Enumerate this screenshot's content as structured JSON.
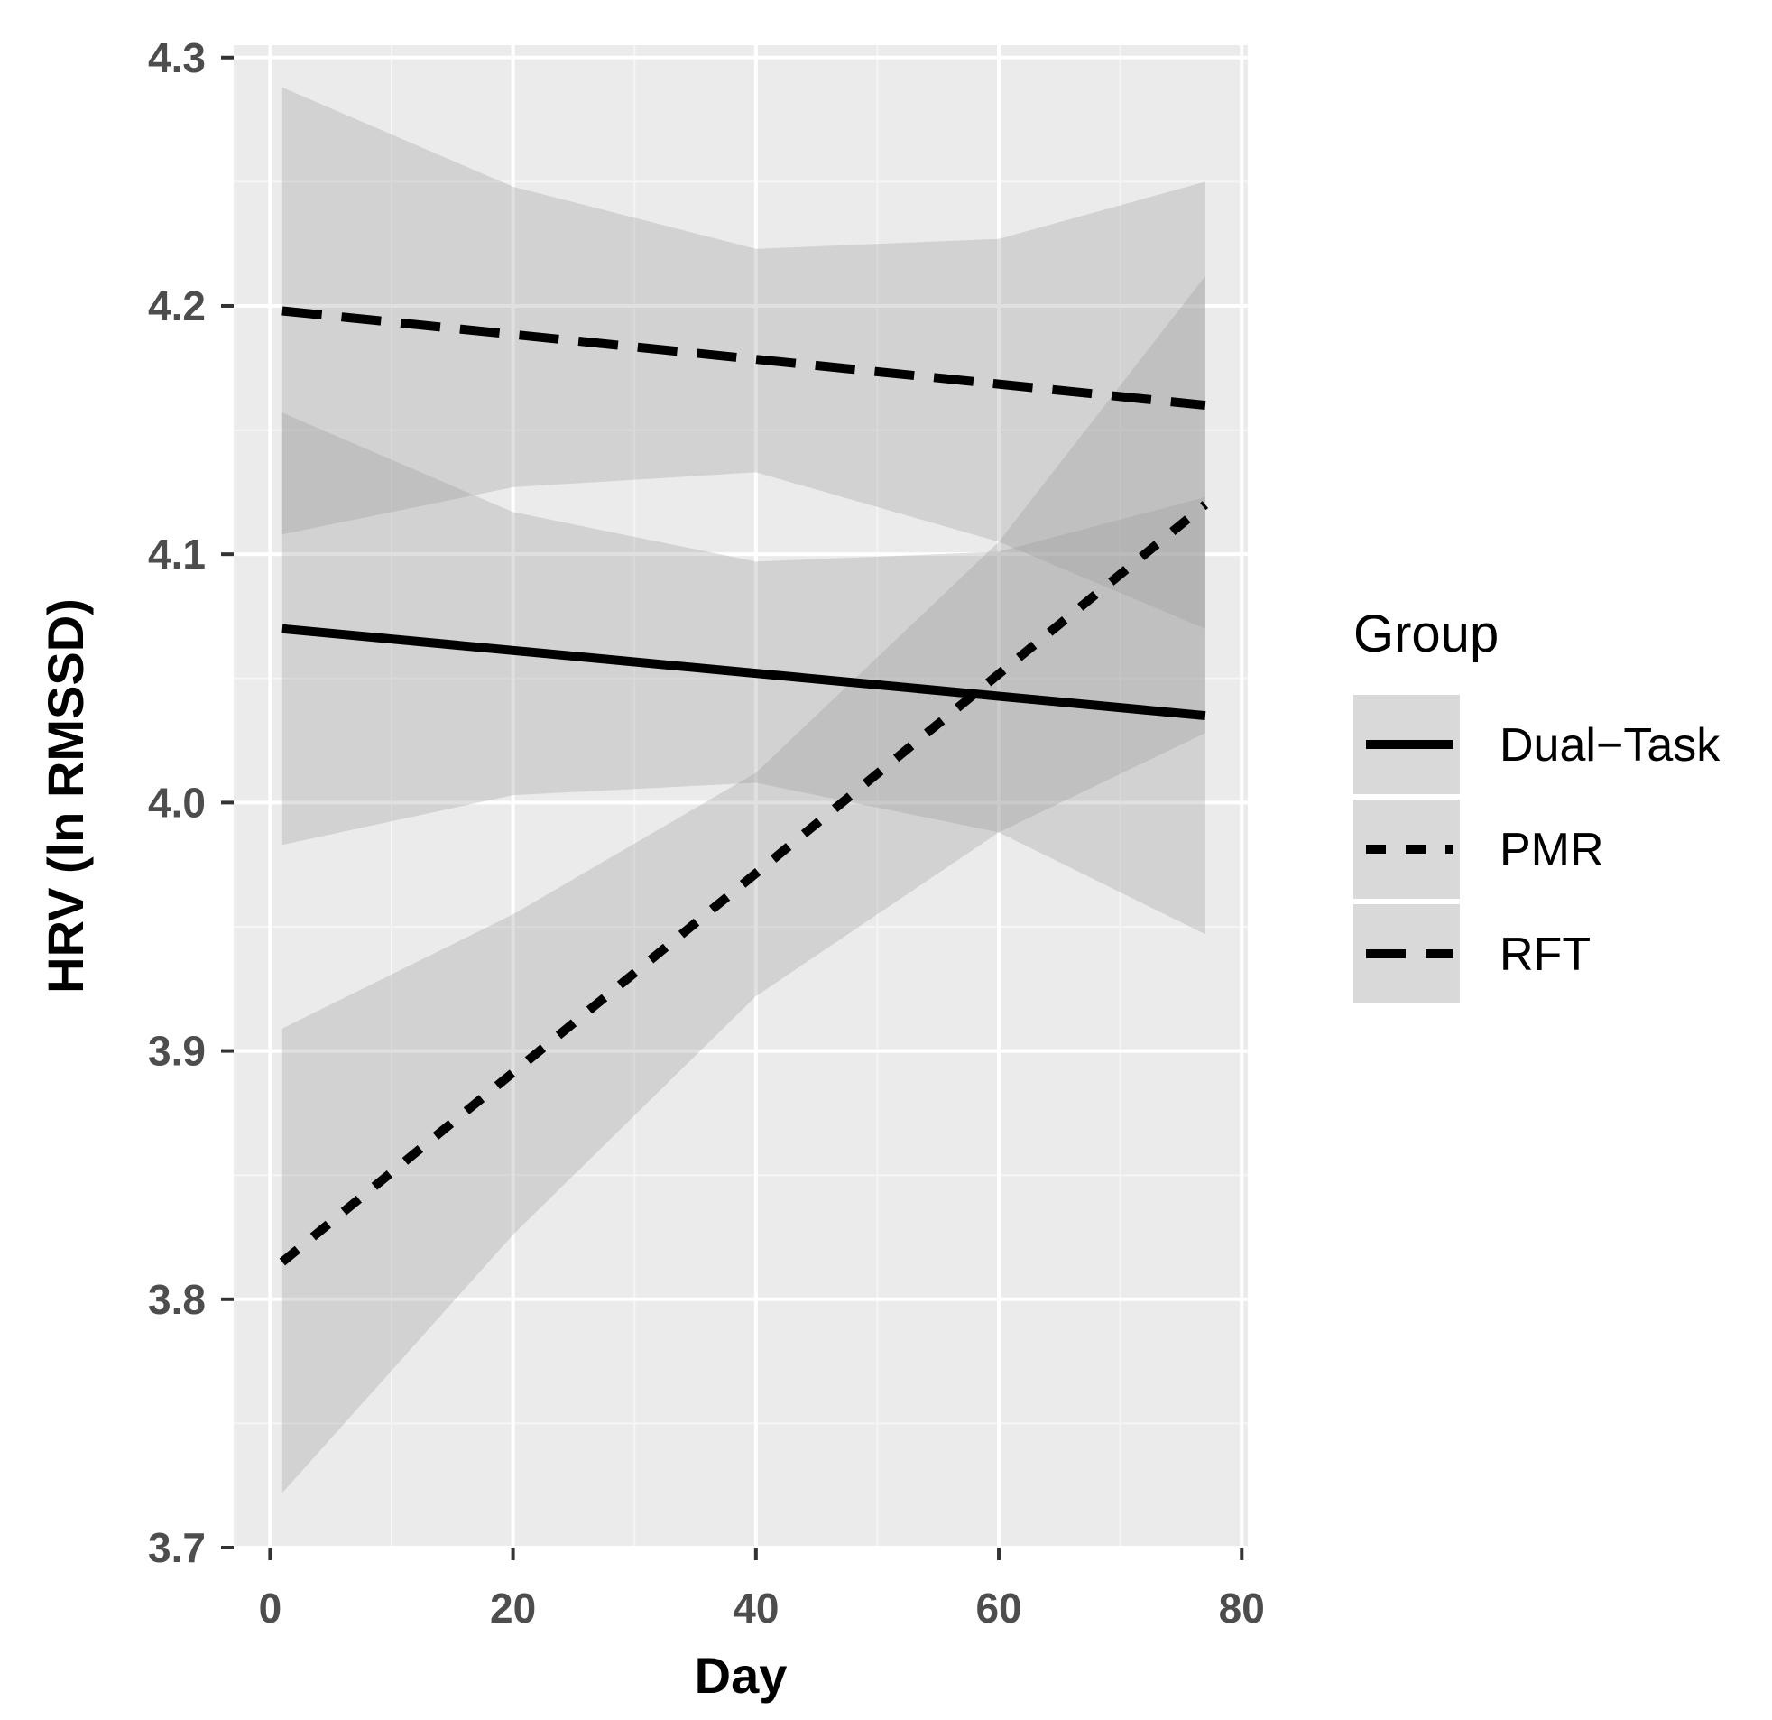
{
  "chart_data": {
    "type": "line",
    "title": "",
    "xlabel": "Day",
    "ylabel": "HRV (ln RMSSD)",
    "xlim": [
      -3,
      80.5
    ],
    "ylim": [
      3.7,
      4.305
    ],
    "xticks": [
      0,
      20,
      40,
      60,
      80
    ],
    "yticks": [
      3.7,
      3.8,
      3.9,
      4.0,
      4.1,
      4.2,
      4.3
    ],
    "xtick_labels": [
      "0",
      "20",
      "40",
      "60",
      "80"
    ],
    "ytick_labels": [
      "3.7",
      "3.8",
      "3.9",
      "4.0",
      "4.1",
      "4.2",
      "4.3"
    ],
    "grid": true,
    "legend": {
      "title": "Group",
      "position": "right"
    },
    "series": [
      {
        "name": "Dual−Task",
        "linestyle": "solid",
        "x": [
          1,
          77
        ],
        "y": [
          4.07,
          4.035
        ],
        "band": {
          "x": [
            1,
            20,
            40,
            60,
            77
          ],
          "lower": [
            3.983,
            4.003,
            4.008,
            3.988,
            3.947
          ],
          "upper": [
            4.157,
            4.117,
            4.097,
            4.101,
            4.123
          ]
        }
      },
      {
        "name": "PMR",
        "linestyle": "dotted",
        "x": [
          1,
          77
        ],
        "y": [
          3.815,
          4.12
        ],
        "band": {
          "x": [
            1,
            20,
            40,
            60,
            77
          ],
          "lower": [
            3.722,
            3.826,
            3.922,
            3.988,
            4.028
          ],
          "upper": [
            3.909,
            3.955,
            4.012,
            4.105,
            4.212
          ]
        }
      },
      {
        "name": "RFT",
        "linestyle": "dashed",
        "x": [
          1,
          77
        ],
        "y": [
          4.198,
          4.16
        ],
        "band": {
          "x": [
            1,
            20,
            40,
            60,
            77
          ],
          "lower": [
            4.108,
            4.127,
            4.133,
            4.105,
            4.07
          ],
          "upper": [
            4.288,
            4.248,
            4.223,
            4.227,
            4.25
          ]
        }
      }
    ]
  },
  "colors": {
    "panel_background": "#ebebeb",
    "grid_major": "#ffffff",
    "grid_minor": "#f5f5f5",
    "band_fill": "#999999",
    "line": "#000000",
    "tick_text": "#4d4d4d",
    "tick_mark": "#333333",
    "legend_key_background": "#d9d9d9"
  }
}
